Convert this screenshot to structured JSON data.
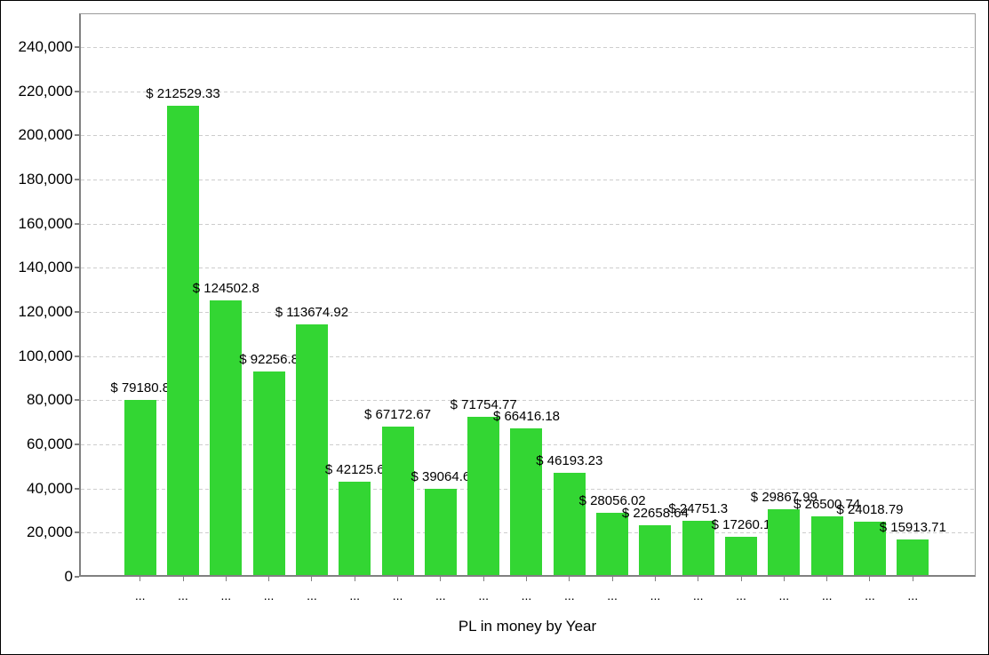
{
  "chart_data": {
    "type": "bar",
    "title": "PL in money by Year",
    "title_position": "bottom",
    "categories": [
      "...",
      "...",
      "...",
      "...",
      "...",
      "...",
      "...",
      "...",
      "...",
      "...",
      "...",
      "...",
      "...",
      "...",
      "...",
      "...",
      "...",
      "...",
      "..."
    ],
    "values": [
      79180.8,
      212529.33,
      124502.8,
      92256.8,
      113674.92,
      42125.6,
      67172.67,
      39064.6,
      71754.77,
      66416.18,
      46193.23,
      28056.02,
      22658.64,
      24751.3,
      17260.1,
      29867.99,
      26500.74,
      24018.79,
      15913.71
    ],
    "bar_labels": [
      "$ 79180.8",
      "$ 212529.33",
      "$ 124502.8",
      "$ 92256.8",
      "$ 113674.92",
      "$ 42125.6",
      "$ 67172.67",
      "$ 39064.6",
      "$ 71754.77",
      "$ 66416.18",
      "$ 46193.23",
      "$ 28056.02",
      "$ 22658.64",
      "$ 24751.3",
      "$ 17260.1",
      "$ 29867.99",
      "$ 26500.74",
      "$ 24018.79",
      "$ 15913.71"
    ],
    "y_tick_values": [
      0,
      20000,
      40000,
      60000,
      80000,
      100000,
      120000,
      140000,
      160000,
      180000,
      200000,
      220000,
      240000
    ],
    "y_tick_labels": [
      "0",
      "20,000",
      "40,000",
      "60,000",
      "80,000",
      "100,000",
      "120,000",
      "140,000",
      "160,000",
      "180,000",
      "200,000",
      "220,000",
      "240,000"
    ],
    "ylim": [
      0,
      255000
    ],
    "xlabel": "",
    "ylabel": "",
    "grid": "horizontal-dashed",
    "legend_position": "none",
    "bar_color": "#33d633",
    "grid_color": "#cdcdcd",
    "axis_color": "#808080",
    "text_color": "#000000"
  }
}
